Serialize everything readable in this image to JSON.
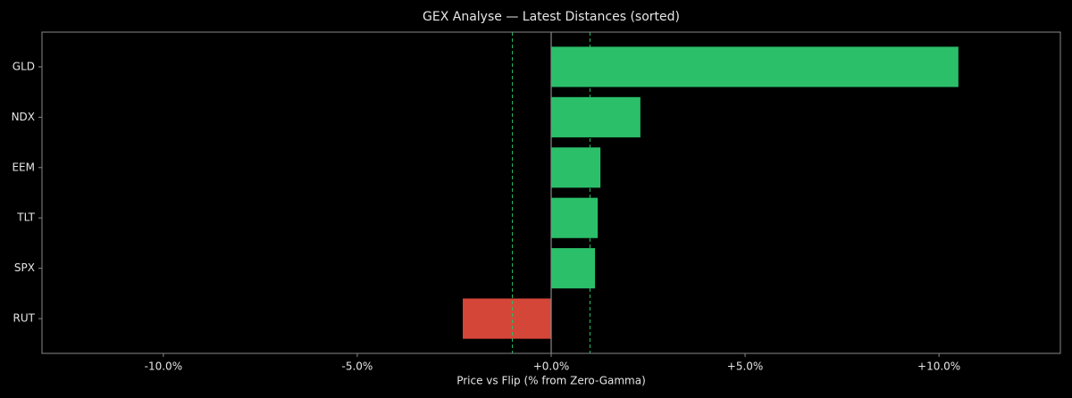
{
  "chart_data": {
    "type": "barh",
    "title": "GEX Analyse — Latest Distances (sorted)",
    "xlabel": "Price vs Flip (% from Zero-Gamma)",
    "categories": [
      "GLD",
      "NDX",
      "EEM",
      "TLT",
      "SPX",
      "RUT"
    ],
    "values": [
      10.5,
      2.3,
      1.27,
      1.2,
      1.13,
      -2.28
    ],
    "colors": [
      "#2bbf6a",
      "#2bbf6a",
      "#2bbf6a",
      "#2bbf6a",
      "#2bbf6a",
      "#d44638"
    ],
    "xlim": [
      -13.13,
      13.13
    ],
    "xticks": [
      {
        "value": -10,
        "label": "-10.0%"
      },
      {
        "value": -5,
        "label": "-5.0%"
      },
      {
        "value": 0,
        "label": "+0.0%"
      },
      {
        "value": 5,
        "label": "+5.0%"
      },
      {
        "value": 10,
        "label": "+10.0%"
      }
    ],
    "reference_lines": [
      -1,
      1
    ],
    "reference_color": "#2bbf6a",
    "zero_line": 0
  }
}
